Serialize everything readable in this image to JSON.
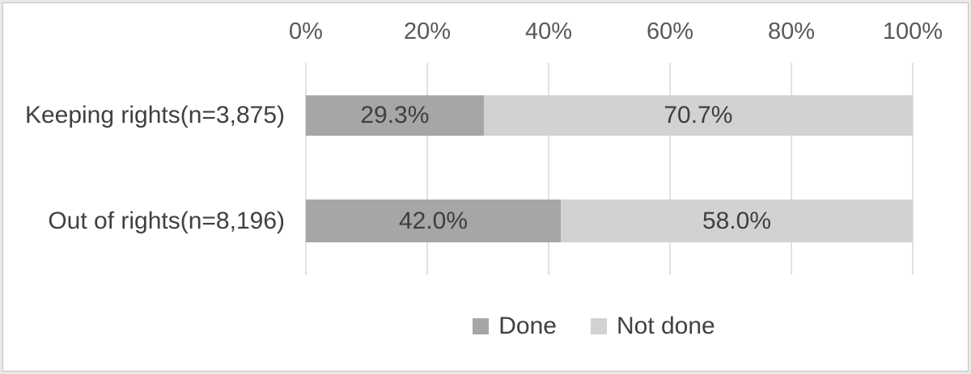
{
  "chart_data": {
    "type": "bar",
    "variant": "horizontal-stacked",
    "title": "",
    "xlabel": "",
    "ylabel": "",
    "xlim": [
      0,
      100
    ],
    "x_ticks": [
      "0%",
      "20%",
      "40%",
      "60%",
      "80%",
      "100%"
    ],
    "x_tick_values": [
      0,
      20,
      40,
      60,
      80,
      100
    ],
    "grid": true,
    "legend_position": "bottom",
    "categories": [
      "Keeping rights(n=3,875)",
      "Out of rights(n=8,196)"
    ],
    "series": [
      {
        "name": "Done",
        "color": "#a6a6a6",
        "values": [
          29.3,
          42.0
        ],
        "labels": [
          "29.3%",
          "42.0%"
        ]
      },
      {
        "name": "Not done",
        "color": "#d2d2d2",
        "values": [
          70.7,
          58.0
        ],
        "labels": [
          "70.7%",
          "58.0%"
        ]
      }
    ],
    "colors": {
      "gridline": "#e2e2e2",
      "axis_text": "#595959",
      "label_text": "#404040",
      "frame_border": "#c2c2c2",
      "frame_outer": "#e9e9e9"
    }
  }
}
